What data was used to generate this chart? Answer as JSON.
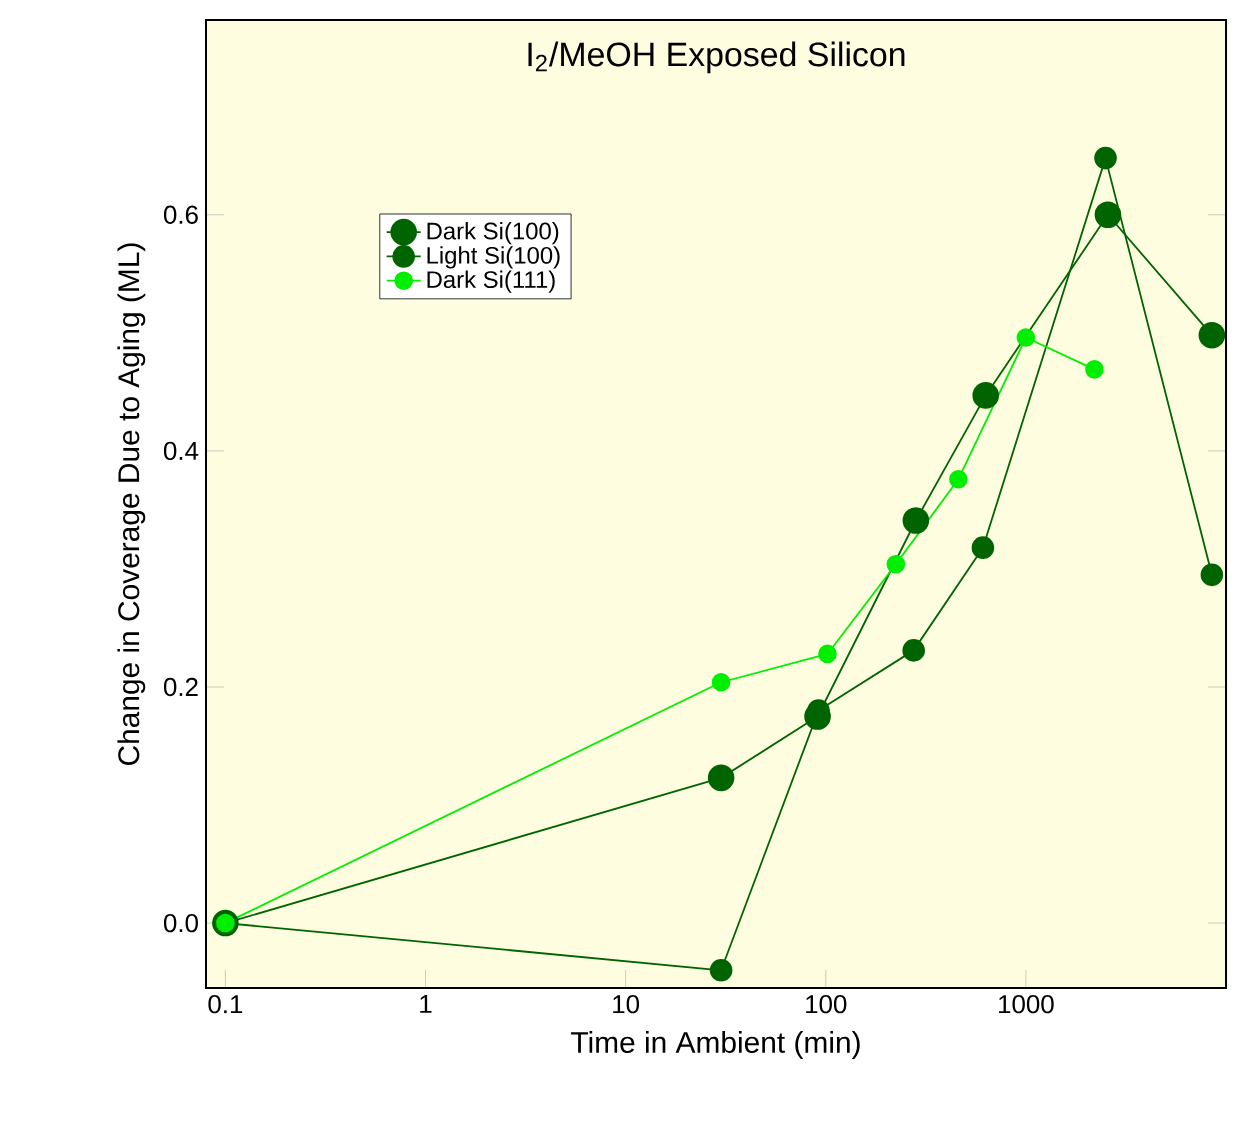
{
  "chart_data": {
    "type": "line",
    "title": "I$_{2}$/MeOH Exposed Silicon",
    "xlabel": "Time in Ambient (min)",
    "ylabel": "Change in Coverage Due to Aging (ML)",
    "log": "x",
    "xlim": [
      0.08,
      10000
    ],
    "ylim": [
      -0.055,
      0.765
    ],
    "xticks": [
      0.1,
      1,
      10,
      100,
      1000
    ],
    "yticks": [
      {
        "value": 0,
        "label": "0.0"
      },
      0.2,
      0.4,
      0.6
    ],
    "grid": false,
    "legend": "top left",
    "marker": "circle",
    "line_style": "solid",
    "series": [
      {
        "name": "Dark Si(100)",
        "color": "#006400",
        "x": [
          0.1,
          30,
          91,
          282,
          630,
          2570,
          8500
        ],
        "values": [
          0,
          0.123,
          0.175,
          0.341,
          0.447,
          0.6,
          0.498
        ]
      },
      {
        "name": "Light Si(100)",
        "color": "#006400",
        "x": [
          0.1,
          30,
          92,
          275,
          610,
          2500,
          8500
        ],
        "values": [
          0,
          -0.04,
          0.18,
          0.231,
          0.318,
          0.648,
          0.295
        ]
      },
      {
        "name": "Dark Si(111)",
        "color": "#00ee00",
        "x": [
          0.1,
          30,
          102,
          224,
          460,
          1000,
          2200
        ],
        "values": [
          0,
          0.204,
          0.228,
          0.304,
          0.376,
          0.496,
          0.469
        ]
      }
    ]
  }
}
